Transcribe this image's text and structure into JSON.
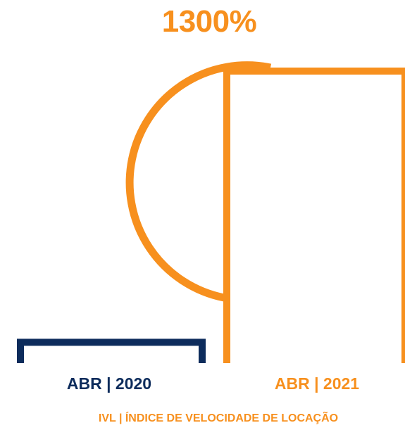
{
  "chart_data": {
    "type": "bar",
    "categories": [
      "ABR | 2020",
      "ABR | 2021"
    ],
    "values": [
      1,
      14
    ],
    "annotation": "1300%",
    "footer": "IVL | ÍNDICE DE VELOCIDADE DE LOCAÇÃO",
    "xlabel": "",
    "ylabel": "",
    "grid": false,
    "colors": {
      "ABR | 2020": "#0d2c5c",
      "ABR | 2021": "#f7901e"
    }
  }
}
